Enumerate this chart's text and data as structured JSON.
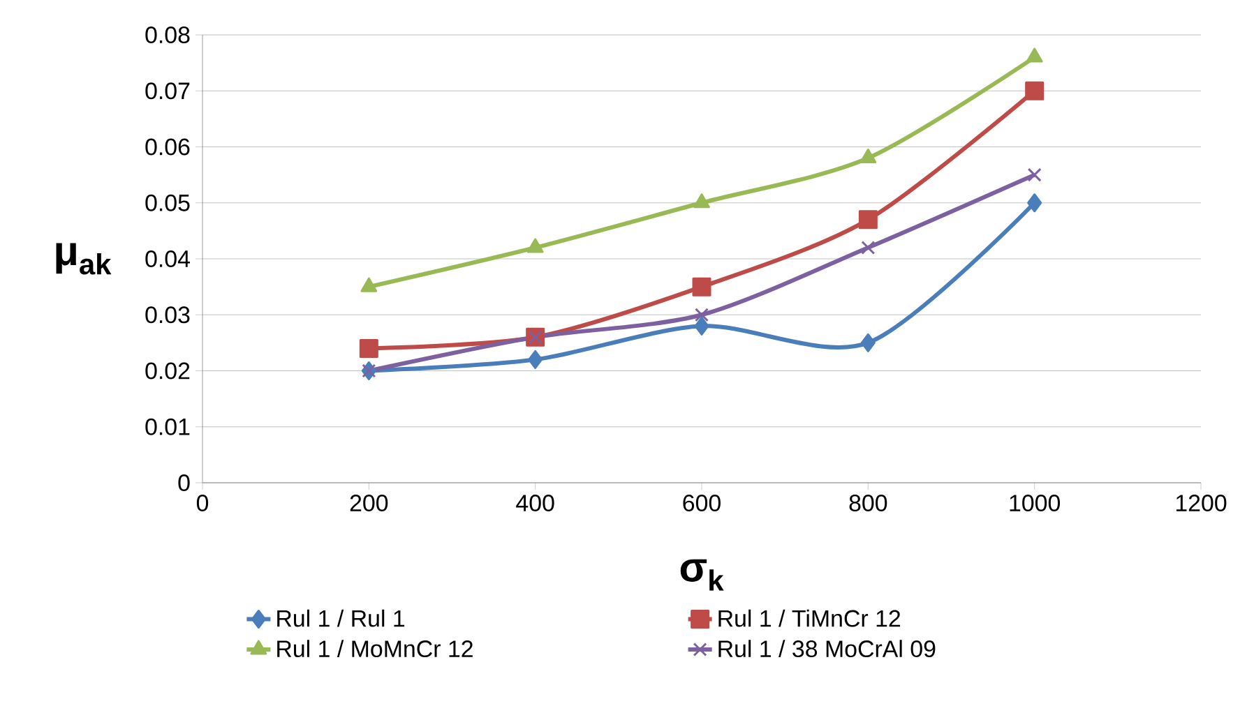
{
  "chart_data": {
    "type": "line",
    "xlabel": "σ$_{k}$",
    "ylabel": "μ$_{ak}$",
    "x": [
      200,
      400,
      600,
      800,
      1000
    ],
    "series": [
      {
        "name": "Rul 1 / Rul 1",
        "color": "#4a7ebb",
        "marker": "diamond",
        "values": [
          0.02,
          0.022,
          0.028,
          0.025,
          0.05
        ]
      },
      {
        "name": "Rul 1 / TiMnCr 12",
        "color": "#be4b48",
        "marker": "square",
        "values": [
          0.024,
          0.026,
          0.035,
          0.047,
          0.07
        ]
      },
      {
        "name": "Rul 1 / MoMnCr 12",
        "color": "#98b954",
        "marker": "triangle",
        "values": [
          0.035,
          0.042,
          0.05,
          0.058,
          0.076
        ]
      },
      {
        "name": "Rul 1 / 38 MoCrAl 09",
        "color": "#7d60a0",
        "marker": "cross",
        "values": [
          0.02,
          0.026,
          0.03,
          0.042,
          0.055
        ]
      }
    ],
    "xlim": [
      0,
      1200
    ],
    "xticks": [
      0,
      200,
      400,
      600,
      800,
      1000,
      1200
    ],
    "ylim": [
      0,
      0.08
    ],
    "yticks": [
      0,
      0.01,
      0.02,
      0.03,
      0.04,
      0.05,
      0.06,
      0.07,
      0.08
    ],
    "grid": "y",
    "legend": "bottom",
    "line_style": "solid"
  }
}
